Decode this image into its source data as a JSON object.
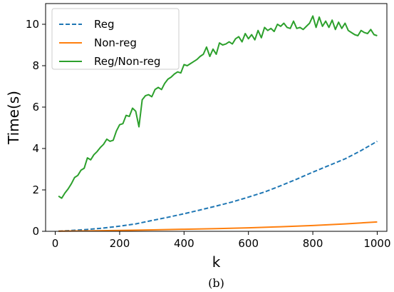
{
  "chart_data": {
    "type": "line",
    "title": "",
    "xlabel": "k",
    "ylabel": "Time(s)",
    "xlim": [
      -30,
      1030
    ],
    "ylim": [
      0,
      11
    ],
    "xticks": [
      0,
      200,
      400,
      600,
      800,
      1000
    ],
    "yticks": [
      0,
      2,
      4,
      6,
      8,
      10
    ],
    "x_tick_labels": [
      "0",
      "200",
      "400",
      "600",
      "800",
      "1000"
    ],
    "y_tick_labels": [
      "0",
      "2",
      "4",
      "6",
      "8",
      "10"
    ],
    "grid": false,
    "legend_position": "upper-left",
    "caption": "(b)",
    "series": [
      {
        "name": "Reg",
        "color": "#1f77b4",
        "style": "dashed",
        "x": [
          10,
          50,
          100,
          150,
          200,
          250,
          300,
          350,
          400,
          450,
          500,
          550,
          600,
          650,
          700,
          750,
          800,
          850,
          900,
          950,
          1000
        ],
        "y": [
          0.01,
          0.04,
          0.09,
          0.16,
          0.25,
          0.36,
          0.52,
          0.68,
          0.85,
          1.03,
          1.22,
          1.42,
          1.65,
          1.9,
          2.2,
          2.52,
          2.86,
          3.18,
          3.5,
          3.9,
          4.35
        ]
      },
      {
        "name": "Non-reg",
        "color": "#ff7f0e",
        "style": "solid",
        "x": [
          10,
          100,
          200,
          300,
          400,
          500,
          600,
          700,
          800,
          900,
          1000
        ],
        "y": [
          0.01,
          0.02,
          0.04,
          0.07,
          0.1,
          0.13,
          0.17,
          0.22,
          0.28,
          0.36,
          0.45
        ]
      },
      {
        "name": "Reg/Non-reg",
        "color": "#2ca02c",
        "style": "solid",
        "x": [
          10,
          20,
          30,
          40,
          50,
          60,
          70,
          80,
          90,
          100,
          110,
          120,
          130,
          140,
          150,
          160,
          170,
          180,
          190,
          200,
          210,
          220,
          230,
          240,
          250,
          260,
          270,
          280,
          290,
          300,
          310,
          320,
          330,
          340,
          350,
          360,
          370,
          380,
          390,
          400,
          410,
          420,
          430,
          440,
          450,
          460,
          470,
          480,
          490,
          500,
          510,
          520,
          530,
          540,
          550,
          560,
          570,
          580,
          590,
          600,
          610,
          620,
          630,
          640,
          650,
          660,
          670,
          680,
          690,
          700,
          710,
          720,
          730,
          740,
          750,
          760,
          770,
          780,
          790,
          800,
          810,
          820,
          830,
          840,
          850,
          860,
          870,
          880,
          890,
          900,
          910,
          920,
          930,
          940,
          950,
          960,
          970,
          980,
          990,
          1000
        ],
        "y": [
          1.7,
          1.6,
          1.85,
          2.05,
          2.3,
          2.6,
          2.7,
          2.95,
          3.05,
          3.55,
          3.45,
          3.7,
          3.85,
          4.05,
          4.2,
          4.45,
          4.35,
          4.4,
          4.85,
          5.15,
          5.2,
          5.6,
          5.55,
          5.95,
          5.8,
          5.05,
          6.35,
          6.55,
          6.6,
          6.5,
          6.85,
          6.95,
          6.85,
          7.15,
          7.35,
          7.45,
          7.6,
          7.7,
          7.65,
          8.05,
          8.0,
          8.1,
          8.2,
          8.3,
          8.45,
          8.55,
          8.9,
          8.45,
          8.8,
          8.55,
          9.1,
          9.0,
          9.05,
          9.15,
          9.05,
          9.3,
          9.4,
          9.15,
          9.55,
          9.3,
          9.5,
          9.25,
          9.7,
          9.35,
          9.85,
          9.7,
          9.8,
          9.65,
          10.0,
          9.9,
          10.05,
          9.85,
          9.8,
          10.15,
          9.8,
          9.85,
          9.75,
          9.9,
          10.05,
          10.4,
          9.85,
          10.35,
          9.9,
          10.15,
          9.85,
          10.2,
          9.75,
          10.1,
          9.8,
          10.05,
          9.7,
          9.6,
          9.5,
          9.45,
          9.7,
          9.6,
          9.55,
          9.75,
          9.5,
          9.45
        ]
      }
    ]
  }
}
